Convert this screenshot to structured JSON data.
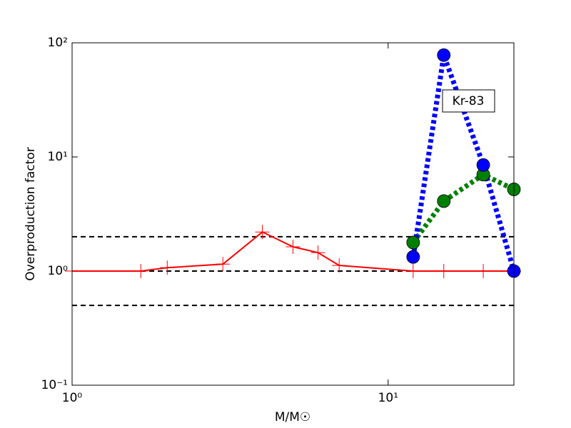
{
  "chart_data": {
    "type": "line",
    "xlabel": "M/M☉",
    "ylabel": "Overproduction factor",
    "xscale": "log",
    "yscale": "log",
    "xlim": [
      1,
      25
    ],
    "ylim": [
      0.1,
      100
    ],
    "xticks": [
      {
        "value": 1,
        "label": "10⁰"
      },
      {
        "value": 10,
        "label": "10¹"
      }
    ],
    "yticks": [
      {
        "value": 0.1,
        "label": "10⁻¹"
      },
      {
        "value": 1,
        "label": "10⁰"
      },
      {
        "value": 10,
        "label": "10¹"
      },
      {
        "value": 100,
        "label": "10²"
      }
    ],
    "reference_lines": [
      0.5,
      1,
      2
    ],
    "annotation": "Kr-83",
    "series": [
      {
        "color": "#ff0000",
        "style": "solid",
        "marker": "plus",
        "x": [
          1,
          1.65,
          2,
          3,
          4,
          5,
          6,
          7,
          12,
          15,
          20,
          25
        ],
        "values": [
          1.0,
          1.0,
          1.07,
          1.15,
          2.2,
          1.63,
          1.45,
          1.12,
          1.0,
          1.0,
          1.0,
          1.0
        ]
      },
      {
        "color": "#008000",
        "style": "dotted",
        "marker": "circle",
        "x": [
          12,
          15,
          20,
          25
        ],
        "values": [
          1.78,
          4.1,
          7.0,
          5.2
        ]
      },
      {
        "color": "#0000ff",
        "style": "dotted",
        "marker": "circle",
        "x": [
          12,
          15,
          20,
          25
        ],
        "values": [
          1.33,
          78,
          8.5,
          1.0
        ]
      }
    ]
  }
}
